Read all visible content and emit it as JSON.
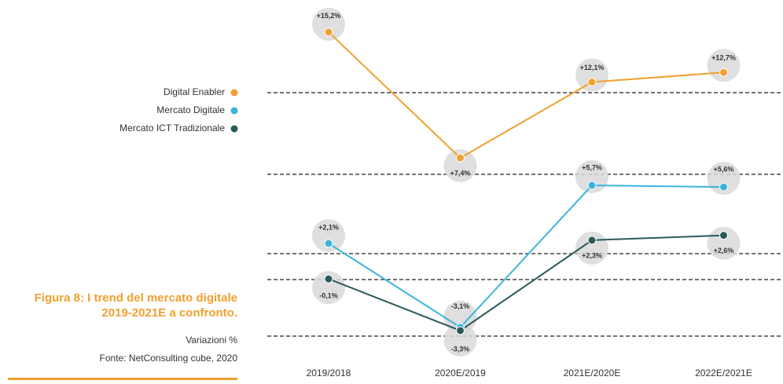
{
  "chart_data": {
    "type": "line",
    "title": "Figura 8: I trend del mercato digitale 2019-2021E a confronto.",
    "subtitle": "Variazioni %",
    "source": "Fonte: NetConsulting cube, 2020",
    "categories": [
      "2019/2018",
      "2020E/2019",
      "2021E/2020E",
      "2022E/2021E"
    ],
    "ylim": [
      -5.2,
      16.7
    ],
    "series": [
      {
        "name": "Digital Enabler",
        "color": "#f0a030",
        "values": [
          15.2,
          7.4,
          12.1,
          12.7
        ],
        "value_labels": [
          "+15,2%",
          "+7,4%",
          "+12,1%",
          "+12,7%"
        ]
      },
      {
        "name": "Mercato Digitale",
        "color": "#3cb4dc",
        "values": [
          2.1,
          -3.1,
          5.7,
          5.6
        ],
        "value_labels": [
          "+2,1%",
          "-3,1%",
          "+5,7%",
          "+5,6%"
        ]
      },
      {
        "name": "Mercato ICT Tradizionale",
        "color": "#2a5a5a",
        "values": [
          -0.1,
          -3.3,
          2.3,
          2.6
        ],
        "value_labels": [
          "-0,1%",
          "-3,3%",
          "+2,3%",
          "+2,6%"
        ]
      }
    ]
  }
}
